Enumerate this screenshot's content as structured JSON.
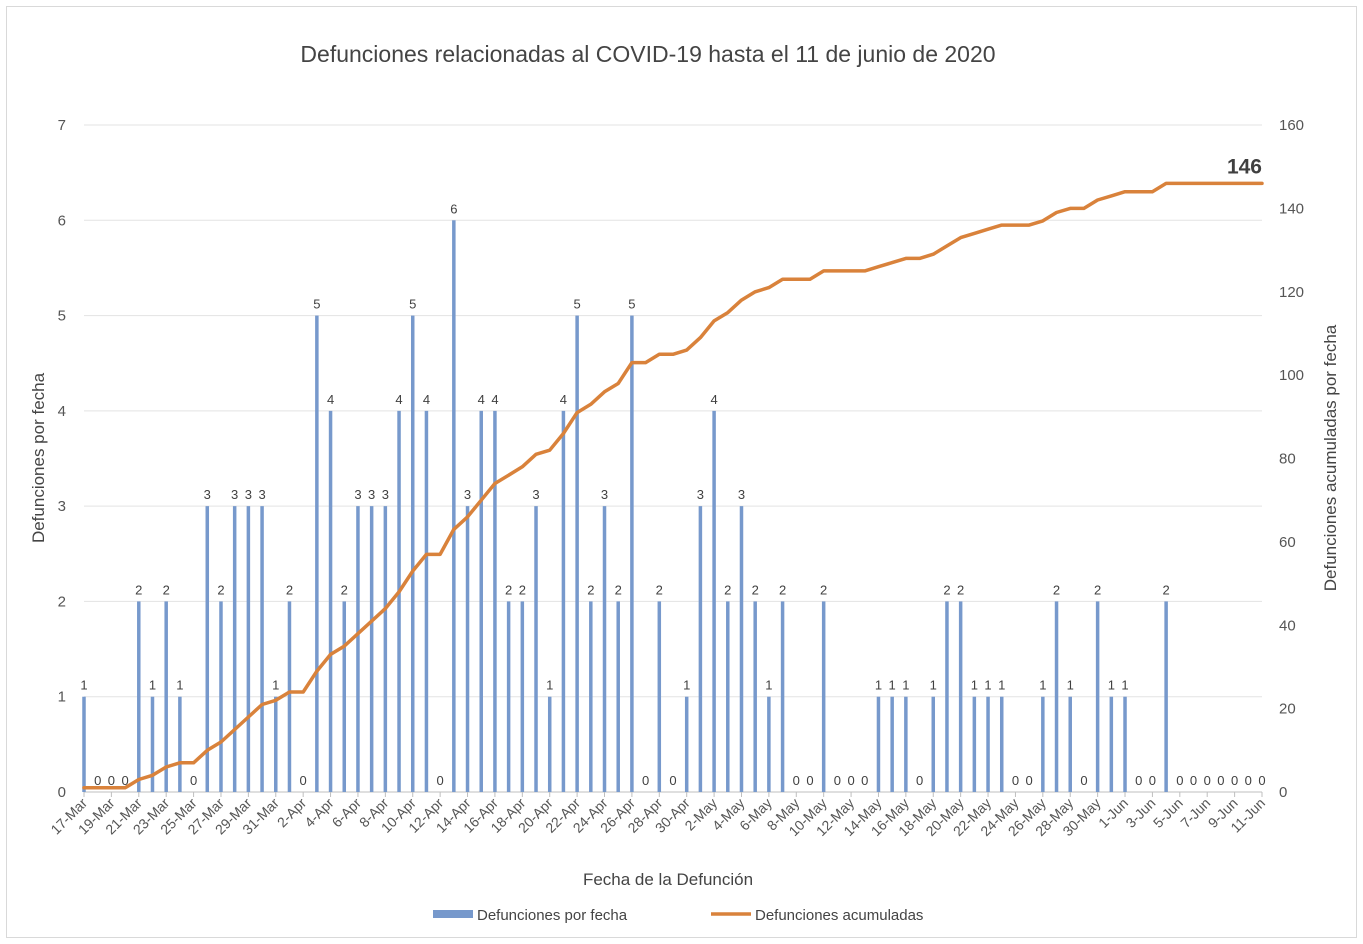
{
  "chart_data": {
    "type": "bar+line",
    "title": "Defunciones relacionadas al COVID-19 hasta el 11 de junio de 2020",
    "xlabel": "Fecha de la Defunción",
    "ylabel_left": "Defunciones por fecha",
    "ylabel_right": "Defunciones acumuladas por fecha",
    "ylim_left": [
      0,
      7
    ],
    "ylim_right": [
      0,
      160
    ],
    "yticks_left": [
      "0",
      "1",
      "2",
      "3",
      "4",
      "5",
      "6",
      "7"
    ],
    "yticks_right": [
      "0",
      "20",
      "40",
      "60",
      "80",
      "100",
      "120",
      "140",
      "160"
    ],
    "grid": true,
    "legend_position": "bottom",
    "categories": [
      "17-Mar",
      "18-Mar",
      "19-Mar",
      "20-Mar",
      "21-Mar",
      "22-Mar",
      "23-Mar",
      "24-Mar",
      "25-Mar",
      "26-Mar",
      "27-Mar",
      "28-Mar",
      "29-Mar",
      "30-Mar",
      "31-Mar",
      "1-Apr",
      "2-Apr",
      "3-Apr",
      "4-Apr",
      "5-Apr",
      "6-Apr",
      "7-Apr",
      "8-Apr",
      "9-Apr",
      "10-Apr",
      "11-Apr",
      "12-Apr",
      "13-Apr",
      "14-Apr",
      "15-Apr",
      "16-Apr",
      "17-Apr",
      "18-Apr",
      "19-Apr",
      "20-Apr",
      "21-Apr",
      "22-Apr",
      "23-Apr",
      "24-Apr",
      "25-Apr",
      "26-Apr",
      "27-Apr",
      "28-Apr",
      "29-Apr",
      "30-Apr",
      "1-May",
      "2-May",
      "3-May",
      "4-May",
      "5-May",
      "6-May",
      "7-May",
      "8-May",
      "9-May",
      "10-May",
      "11-May",
      "12-May",
      "13-May",
      "14-May",
      "15-May",
      "16-May",
      "17-May",
      "18-May",
      "19-May",
      "20-May",
      "21-May",
      "22-May",
      "23-May",
      "24-May",
      "25-May",
      "26-May",
      "27-May",
      "28-May",
      "29-May",
      "30-May",
      "31-May",
      "1-Jun",
      "2-Jun",
      "3-Jun",
      "4-Jun",
      "5-Jun",
      "6-Jun",
      "7-Jun",
      "8-Jun",
      "9-Jun",
      "10-Jun",
      "11-Jun"
    ],
    "xtick_labels": [
      "17-Mar",
      "19-Mar",
      "21-Mar",
      "23-Mar",
      "25-Mar",
      "27-Mar",
      "29-Mar",
      "31-Mar",
      "2-Apr",
      "4-Apr",
      "6-Apr",
      "8-Apr",
      "10-Apr",
      "12-Apr",
      "14-Apr",
      "16-Apr",
      "18-Apr",
      "20-Apr",
      "22-Apr",
      "24-Apr",
      "26-Apr",
      "28-Apr",
      "30-Apr",
      "2-May",
      "4-May",
      "6-May",
      "8-May",
      "10-May",
      "12-May",
      "14-May",
      "16-May",
      "18-May",
      "20-May",
      "22-May",
      "24-May",
      "26-May",
      "28-May",
      "30-May",
      "1-Jun",
      "3-Jun",
      "5-Jun",
      "7-Jun",
      "9-Jun",
      "11-Jun"
    ],
    "series": [
      {
        "name": "Defunciones por fecha",
        "type": "bar",
        "axis": "left",
        "color": "#7799cc",
        "values": [
          1,
          0,
          0,
          0,
          2,
          1,
          2,
          1,
          0,
          3,
          2,
          3,
          3,
          3,
          1,
          2,
          0,
          5,
          4,
          2,
          3,
          3,
          3,
          4,
          5,
          4,
          0,
          6,
          3,
          4,
          4,
          2,
          2,
          3,
          1,
          4,
          5,
          2,
          3,
          2,
          5,
          0,
          2,
          0,
          1,
          3,
          4,
          2,
          3,
          2,
          1,
          2,
          0,
          0,
          2,
          0,
          0,
          0,
          1,
          1,
          1,
          0,
          1,
          2,
          2,
          1,
          1,
          1,
          0,
          0,
          1,
          2,
          1,
          0,
          2,
          1,
          1,
          0,
          0,
          2,
          0,
          0,
          0,
          0,
          0,
          0,
          0
        ]
      },
      {
        "name": "Defunciones acumuladas",
        "type": "line",
        "axis": "right",
        "color": "#d9823b",
        "values": [
          1,
          1,
          1,
          1,
          3,
          4,
          6,
          7,
          7,
          10,
          12,
          15,
          18,
          21,
          22,
          24,
          24,
          29,
          33,
          35,
          38,
          41,
          44,
          48,
          53,
          57,
          57,
          63,
          66,
          70,
          74,
          76,
          78,
          81,
          82,
          86,
          91,
          93,
          96,
          98,
          103,
          103,
          105,
          105,
          106,
          109,
          113,
          115,
          118,
          120,
          121,
          123,
          123,
          123,
          125,
          125,
          125,
          125,
          126,
          127,
          128,
          128,
          129,
          131,
          133,
          134,
          135,
          136,
          136,
          136,
          137,
          139,
          140,
          140,
          142,
          143,
          144,
          144,
          144,
          146,
          146,
          146,
          146,
          146,
          146,
          146,
          146
        ],
        "end_label": "146"
      }
    ]
  }
}
